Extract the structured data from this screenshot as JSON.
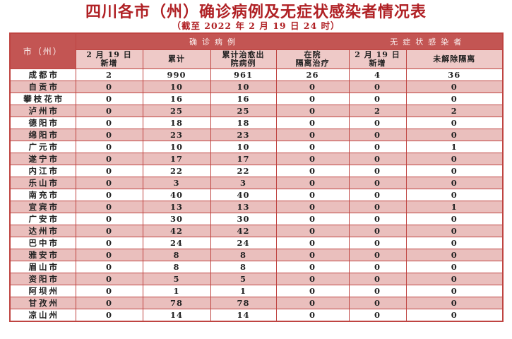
{
  "colors": {
    "title_red": "#b02125",
    "band_bg": "#c35553",
    "band_text": "#fbf1f0",
    "subheader_bg": "#eec9c7",
    "stripe_pink": "#eabfbd",
    "border_red": "#bf4441",
    "text_dark": "#222222"
  },
  "chart_data": {
    "type": "table",
    "title": "四川各市（州）确诊病例及无症状感染者情况表",
    "subtitle": "（截至 2022 年 2 月 19 日 24 时）",
    "corner_header": "市（州）",
    "groups": [
      {
        "label": "确诊病例",
        "colspan": 4
      },
      {
        "label": "无症状感染者",
        "colspan": 2
      }
    ],
    "sub_headers": [
      "2 月 19 日\n新增",
      "累计",
      "累计治愈出\n院病例",
      "在院\n隔离治疗",
      "2 月 19 日\n新增",
      "未解除隔离"
    ],
    "rows": [
      {
        "city": "成都市",
        "values": [
          2,
          990,
          961,
          26,
          4,
          36
        ]
      },
      {
        "city": "自贡市",
        "values": [
          0,
          10,
          10,
          0,
          0,
          0
        ]
      },
      {
        "city": "攀枝花市",
        "values": [
          0,
          16,
          16,
          0,
          0,
          0
        ]
      },
      {
        "city": "泸州市",
        "values": [
          0,
          25,
          25,
          0,
          2,
          2
        ]
      },
      {
        "city": "德阳市",
        "values": [
          0,
          18,
          18,
          0,
          0,
          0
        ]
      },
      {
        "city": "绵阳市",
        "values": [
          0,
          23,
          23,
          0,
          0,
          0
        ]
      },
      {
        "city": "广元市",
        "values": [
          0,
          10,
          10,
          0,
          0,
          1
        ]
      },
      {
        "city": "遂宁市",
        "values": [
          0,
          17,
          17,
          0,
          0,
          0
        ]
      },
      {
        "city": "内江市",
        "values": [
          0,
          22,
          22,
          0,
          0,
          0
        ]
      },
      {
        "city": "乐山市",
        "values": [
          0,
          3,
          3,
          0,
          0,
          0
        ]
      },
      {
        "city": "南充市",
        "values": [
          0,
          40,
          40,
          0,
          0,
          0
        ]
      },
      {
        "city": "宜宾市",
        "values": [
          0,
          13,
          13,
          0,
          0,
          1
        ]
      },
      {
        "city": "广安市",
        "values": [
          0,
          30,
          30,
          0,
          0,
          0
        ]
      },
      {
        "city": "达州市",
        "values": [
          0,
          42,
          42,
          0,
          0,
          0
        ]
      },
      {
        "city": "巴中市",
        "values": [
          0,
          24,
          24,
          0,
          0,
          0
        ]
      },
      {
        "city": "雅安市",
        "values": [
          0,
          8,
          8,
          0,
          0,
          0
        ]
      },
      {
        "city": "眉山市",
        "values": [
          0,
          8,
          8,
          0,
          0,
          0
        ]
      },
      {
        "city": "资阳市",
        "values": [
          0,
          5,
          5,
          0,
          0,
          0
        ]
      },
      {
        "city": "阿坝州",
        "values": [
          0,
          1,
          1,
          0,
          0,
          0
        ]
      },
      {
        "city": "甘孜州",
        "values": [
          0,
          78,
          78,
          0,
          0,
          0
        ]
      },
      {
        "city": "凉山州",
        "values": [
          0,
          14,
          14,
          0,
          0,
          0
        ]
      }
    ]
  }
}
